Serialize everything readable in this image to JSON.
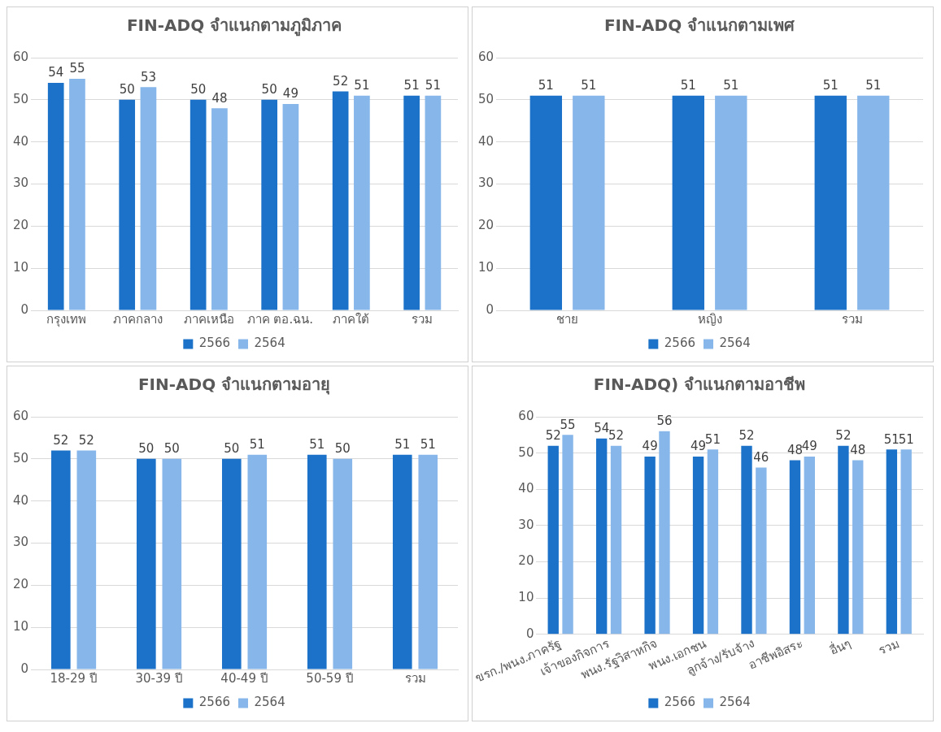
{
  "chart_data": [
    {
      "type": "bar",
      "title": "FIN-ADQ จำแนกตามภูมิภาค",
      "categories": [
        "กรุงเทพ",
        "ภาคกลาง",
        "ภาคเหนือ",
        "ภาค ตอ.ฉน.",
        "ภาคใต้",
        "รวม"
      ],
      "series": [
        {
          "name": "2566",
          "color": "#1b72c8",
          "values": [
            54,
            50,
            50,
            50,
            52,
            51
          ]
        },
        {
          "name": "2564",
          "color": "#86b6ea",
          "values": [
            55,
            53,
            48,
            49,
            51,
            51
          ]
        }
      ],
      "ylim": [
        0,
        60
      ],
      "yticks": [
        0,
        10,
        20,
        30,
        40,
        50,
        60
      ],
      "grid": "y",
      "legend": "bottom",
      "data_labels": true
    },
    {
      "type": "bar",
      "title": "FIN-ADQ จำแนกตามเพศ",
      "categories": [
        "ชาย",
        "หญิง",
        "รวม"
      ],
      "series": [
        {
          "name": "2566",
          "color": "#1b72c8",
          "values": [
            51,
            51,
            51
          ]
        },
        {
          "name": "2564",
          "color": "#86b6ea",
          "values": [
            51,
            51,
            51
          ]
        }
      ],
      "ylim": [
        0,
        60
      ],
      "yticks": [
        0,
        10,
        20,
        30,
        40,
        50,
        60
      ],
      "grid": "y",
      "legend": "bottom",
      "data_labels": true
    },
    {
      "type": "bar",
      "title": "FIN-ADQ จำแนกตามอายุ",
      "categories": [
        "18-29 ปี",
        "30-39 ปี",
        "40-49 ปี",
        "50-59 ปี",
        "รวม"
      ],
      "series": [
        {
          "name": "2566",
          "color": "#1b72c8",
          "values": [
            52,
            50,
            50,
            51,
            51
          ]
        },
        {
          "name": "2564",
          "color": "#86b6ea",
          "values": [
            52,
            50,
            51,
            50,
            51
          ]
        }
      ],
      "ylim": [
        0,
        60
      ],
      "yticks": [
        0,
        10,
        20,
        30,
        40,
        50,
        60
      ],
      "grid": "y",
      "legend": "bottom",
      "data_labels": true
    },
    {
      "type": "bar",
      "title": "FIN-ADQ) จำแนกตามอาชีพ",
      "categories": [
        "ขรก./พนง.ภาครัฐ",
        "เจ้าของกิจการ",
        "พนง.รัฐวิสาหกิจ",
        "พนง.เอกชน",
        "ลูกจ้าง/รับจ้าง",
        "อาชีพอิสระ",
        "อื่นๆ",
        "รวม"
      ],
      "series": [
        {
          "name": "2566",
          "color": "#1b72c8",
          "values": [
            52,
            54,
            49,
            49,
            52,
            48,
            52,
            51
          ]
        },
        {
          "name": "2564",
          "color": "#86b6ea",
          "values": [
            55,
            52,
            56,
            51,
            46,
            49,
            48,
            51
          ]
        }
      ],
      "ylim": [
        0,
        60
      ],
      "yticks": [
        0,
        10,
        20,
        30,
        40,
        50,
        60
      ],
      "grid": "y",
      "legend": "bottom",
      "data_labels": true
    }
  ]
}
